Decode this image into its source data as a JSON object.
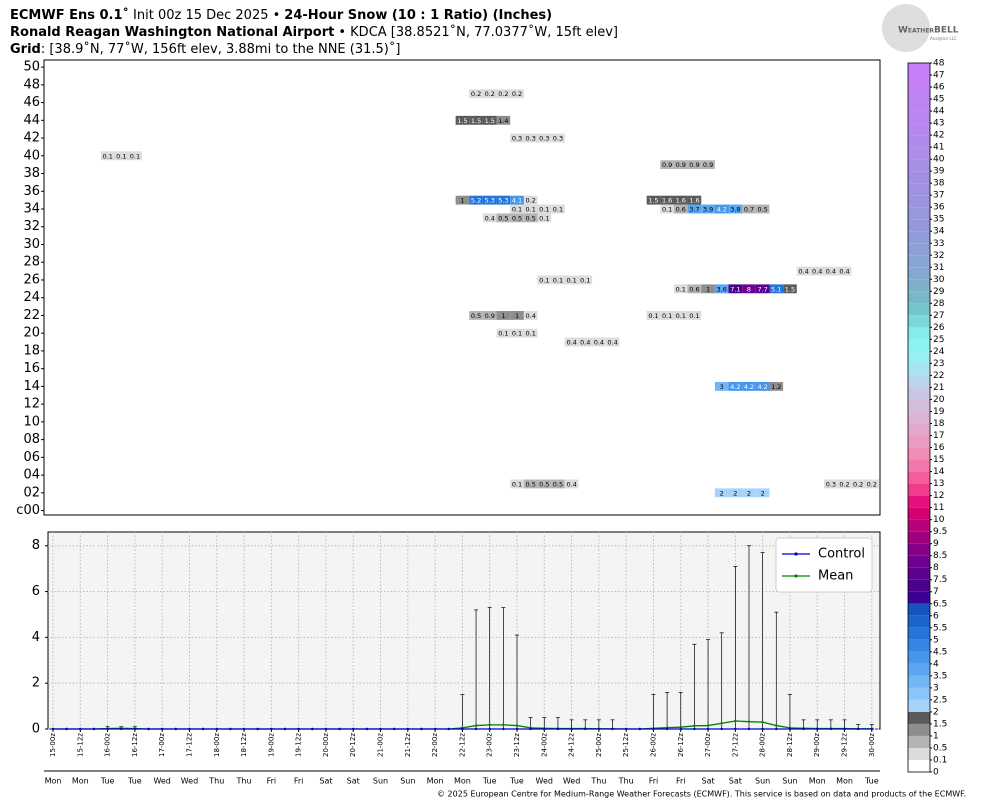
{
  "header": {
    "line1": [
      "ECMWF Ens 0.1˚",
      "Init 00z 15 Dec 2025 •",
      "24-Hour Snow (10 : 1 Ratio) (Inches)"
    ],
    "line2": [
      "Ronald Reagan Washington National Airport",
      "• KDCA [38.8521˚N, 77.0377˚W, 15ft elev]"
    ],
    "line3": [
      "Grid",
      ": [38.9˚N, 77˚W, 156ft elev, 3.88mi to the NNE (31.5)˚]"
    ]
  },
  "logo": {
    "name": "WeatherBELL",
    "sub": "Analytics LLC"
  },
  "footer": "© 2025 European Centre for Medium-Range Weather Forecasts (ECMWF). This service is based on data and products of the ECMWF.",
  "chart_data": [
    {
      "type": "heatmap",
      "xlim": [
        -4,
        363.6
      ],
      "ylim": [
        -0.5,
        50.8
      ],
      "yticks": [
        {
          "value": 0,
          "label": "c00"
        },
        {
          "value": 2,
          "label": "02"
        },
        {
          "value": 4,
          "label": "04"
        },
        {
          "value": 6,
          "label": "06"
        },
        {
          "value": 8,
          "label": "08"
        },
        10,
        12,
        14,
        16,
        18,
        20,
        22,
        24,
        26,
        28,
        30,
        32,
        34,
        36,
        38,
        40,
        42,
        44,
        46,
        48,
        50
      ],
      "cells": [
        {
          "member": 47,
          "hours": [
            186,
            192,
            198,
            204
          ],
          "values": [
            0.2,
            0.2,
            0.2,
            0.2
          ]
        },
        {
          "member": 44,
          "hours": [
            180,
            186,
            192,
            198
          ],
          "values": [
            1.5,
            1.5,
            1.5,
            1.4
          ]
        },
        {
          "member": 42,
          "hours": [
            204,
            210,
            216,
            222
          ],
          "values": [
            0.3,
            0.3,
            0.3,
            0.3
          ]
        },
        {
          "member": 40,
          "hours": [
            24,
            30,
            36
          ],
          "values": [
            0.1,
            0.1,
            0.1
          ]
        },
        {
          "member": 39,
          "hours": [
            270,
            276,
            282,
            288
          ],
          "values": [
            0.9,
            0.9,
            0.9,
            0.9
          ]
        },
        {
          "member": 35,
          "hours": [
            180,
            186,
            192,
            198,
            204,
            210
          ],
          "values": [
            1,
            5.2,
            5.3,
            5.3,
            4.1,
            0.2
          ]
        },
        {
          "member": 35,
          "hours": [
            264,
            270,
            276,
            282
          ],
          "values": [
            1.5,
            1.6,
            1.6,
            1.6
          ]
        },
        {
          "member": 34,
          "hours": [
            204,
            210,
            216,
            222
          ],
          "values": [
            0.1,
            0.1,
            0.1,
            0.1
          ]
        },
        {
          "member": 34,
          "hours": [
            270,
            276,
            282,
            288,
            294,
            300,
            306,
            312
          ],
          "values": [
            0.1,
            0.6,
            3.7,
            3.9,
            4.2,
            3.8,
            0.7,
            0.5
          ]
        },
        {
          "member": 33,
          "hours": [
            192,
            198,
            204,
            210,
            216
          ],
          "values": [
            0.4,
            0.5,
            0.5,
            0.5,
            0.1
          ]
        },
        {
          "member": 27,
          "hours": [
            330,
            336,
            342,
            348
          ],
          "values": [
            0.4,
            0.4,
            0.4,
            0.4
          ]
        },
        {
          "member": 26,
          "hours": [
            216,
            222,
            228,
            234
          ],
          "values": [
            0.1,
            0.1,
            0.1,
            0.1
          ]
        },
        {
          "member": 25,
          "hours": [
            276,
            282,
            288,
            294,
            300,
            306,
            312,
            318,
            324
          ],
          "values": [
            0.1,
            0.6,
            1,
            3.6,
            7.1,
            8,
            7.7,
            5.1,
            1.5
          ]
        },
        {
          "member": 22,
          "hours": [
            186,
            192,
            198,
            204,
            210
          ],
          "values": [
            0.5,
            0.9,
            1,
            1,
            0.4
          ]
        },
        {
          "member": 22,
          "hours": [
            264,
            270,
            276,
            282
          ],
          "values": [
            0.1,
            0.1,
            0.1,
            0.1
          ]
        },
        {
          "member": 20,
          "hours": [
            198,
            204,
            210
          ],
          "values": [
            0.1,
            0.1,
            0.1
          ]
        },
        {
          "member": 19,
          "hours": [
            228,
            234,
            240,
            246
          ],
          "values": [
            0.4,
            0.4,
            0.4,
            0.4
          ]
        },
        {
          "member": 14,
          "hours": [
            294,
            300,
            306,
            312,
            318
          ],
          "values": [
            3,
            4.2,
            4.2,
            4.2,
            1.2
          ]
        },
        {
          "member": 3,
          "hours": [
            204,
            210,
            216,
            222,
            228
          ],
          "values": [
            0.1,
            0.5,
            0.5,
            0.5,
            0.4
          ]
        },
        {
          "member": 3,
          "hours": [
            342,
            348,
            354,
            360
          ],
          "values": [
            0.3,
            0.2,
            0.2,
            0.2
          ]
        },
        {
          "member": 2,
          "hours": [
            294,
            300,
            306,
            312
          ],
          "values": [
            2,
            2,
            2,
            2
          ]
        }
      ],
      "colorbar": {
        "bounds": [
          0,
          0.1,
          0.5,
          1,
          1.5,
          2,
          2.5,
          3,
          3.5,
          4,
          4.5,
          5,
          5.5,
          6,
          6.5,
          7,
          7.5,
          8,
          8.5,
          9,
          9.5,
          10,
          11,
          12,
          13,
          14,
          15,
          16,
          17,
          18,
          19,
          20,
          21,
          22,
          23,
          24,
          25,
          26,
          27,
          28,
          29,
          30,
          31,
          32,
          33,
          34,
          35,
          36,
          37,
          38,
          39,
          40,
          41,
          42,
          43,
          44,
          45,
          46,
          47,
          48
        ],
        "colors": [
          "#ffffff",
          "#dcdcdc",
          "#b4b4b4",
          "#8e8e8e",
          "#5a5a5a",
          "#a6d3fa",
          "#8cc5f8",
          "#72b6f5",
          "#5aa6f1",
          "#4696ec",
          "#3586e4",
          "#2474d9",
          "#1a64cc",
          "#1454bc",
          "#3c0096",
          "#4b0090",
          "#5c0090",
          "#700092",
          "#860088",
          "#9e0080",
          "#b80078",
          "#d20070",
          "#e8107c",
          "#f03c8c",
          "#f45c9c",
          "#f478ac",
          "#f08cb8",
          "#ec9cc4",
          "#e4a8cc",
          "#dcb4d6",
          "#d4bcdc",
          "#c8c8e4",
          "#bad4ec",
          "#a8e4f0",
          "#98eef2",
          "#8ef2f2",
          "#84ecec",
          "#7cd8dc",
          "#74c4cc",
          "#78b8c8",
          "#7eb0cc",
          "#84a8d0",
          "#88a4d4",
          "#8ca0d6",
          "#909cd8",
          "#9498da",
          "#9896dc",
          "#9c94de",
          "#a092e0",
          "#a490e2",
          "#a88ee4",
          "#ac8ce6",
          "#b08aea",
          "#b488ec",
          "#b886ee",
          "#bc84f0",
          "#c082f2",
          "#c480f4",
          "#c87ef8"
        ]
      }
    },
    {
      "type": "line",
      "xlim": [
        -2.2,
        363.6
      ],
      "ylim": [
        0,
        8.6
      ],
      "yticks": [
        0,
        2,
        4,
        6,
        8
      ],
      "grid": true,
      "legend": "upper right",
      "x": [
        0,
        6,
        12,
        18,
        24,
        30,
        36,
        42,
        48,
        54,
        60,
        66,
        72,
        78,
        84,
        90,
        96,
        102,
        108,
        114,
        120,
        126,
        132,
        138,
        144,
        150,
        156,
        162,
        168,
        174,
        180,
        186,
        192,
        198,
        204,
        210,
        216,
        222,
        228,
        234,
        240,
        246,
        252,
        258,
        264,
        270,
        276,
        282,
        288,
        294,
        300,
        306,
        312,
        318,
        324,
        330,
        336,
        342,
        348,
        354,
        360
      ],
      "xticks": [
        {
          "value": 0,
          "label": "15-00z"
        },
        {
          "value": 12,
          "label": "15-12z"
        },
        {
          "value": 24,
          "label": "16-00z"
        },
        {
          "value": 36,
          "label": "16-12z"
        },
        {
          "value": 48,
          "label": "17-00z"
        },
        {
          "value": 60,
          "label": "17-12z"
        },
        {
          "value": 72,
          "label": "18-00z"
        },
        {
          "value": 84,
          "label": "18-12z"
        },
        {
          "value": 96,
          "label": "19-00z"
        },
        {
          "value": 108,
          "label": "19-12z"
        },
        {
          "value": 120,
          "label": "20-00z"
        },
        {
          "value": 132,
          "label": "20-12z"
        },
        {
          "value": 144,
          "label": "21-00z"
        },
        {
          "value": 156,
          "label": "21-12z"
        },
        {
          "value": 168,
          "label": "22-00z"
        },
        {
          "value": 180,
          "label": "22-12z"
        },
        {
          "value": 192,
          "label": "23-00z"
        },
        {
          "value": 204,
          "label": "23-12z"
        },
        {
          "value": 216,
          "label": "24-00z"
        },
        {
          "value": 228,
          "label": "24-12z"
        },
        {
          "value": 240,
          "label": "25-00z"
        },
        {
          "value": 252,
          "label": "25-12z"
        },
        {
          "value": 264,
          "label": "26-00z"
        },
        {
          "value": 276,
          "label": "26-12z"
        },
        {
          "value": 288,
          "label": "27-00z"
        },
        {
          "value": 300,
          "label": "27-12z"
        },
        {
          "value": 312,
          "label": "28-00z"
        },
        {
          "value": 324,
          "label": "28-12z"
        },
        {
          "value": 336,
          "label": "29-00z"
        },
        {
          "value": 348,
          "label": "29-12z"
        },
        {
          "value": 360,
          "label": "30-00z"
        }
      ],
      "weekdays": [
        "Mon",
        "Mon",
        "Tue",
        "Tue",
        "Wed",
        "Wed",
        "Thu",
        "Thu",
        "Fri",
        "Fri",
        "Sat",
        "Sat",
        "Sun",
        "Sun",
        "Mon",
        "Mon",
        "Tue",
        "Tue",
        "Wed",
        "Wed",
        "Thu",
        "Thu",
        "Fri",
        "Fri",
        "Sat",
        "Sat",
        "Sun",
        "Sun",
        "Mon",
        "Mon",
        "Tue"
      ],
      "series": [
        {
          "name": "Control",
          "color": "#0000cc",
          "values": [
            0,
            0,
            0,
            0,
            0,
            0,
            0,
            0,
            0,
            0,
            0,
            0,
            0,
            0,
            0,
            0,
            0,
            0,
            0,
            0,
            0,
            0,
            0,
            0,
            0,
            0,
            0,
            0,
            0,
            0,
            0,
            0,
            0,
            0,
            0,
            0,
            0,
            0,
            0,
            0,
            0,
            0,
            0,
            0,
            0,
            0,
            0,
            0,
            0,
            0,
            0,
            0,
            0,
            0,
            0,
            0,
            0,
            0,
            0,
            0,
            0
          ]
        },
        {
          "name": "Mean",
          "color": "#008000",
          "values": [
            0,
            0,
            0,
            0,
            0.02,
            0.03,
            0.02,
            0,
            0,
            0,
            0,
            0,
            0,
            0,
            0,
            0,
            0,
            0,
            0,
            0,
            0,
            0,
            0,
            0,
            0,
            0,
            0,
            0,
            0,
            0,
            0.05,
            0.15,
            0.18,
            0.18,
            0.15,
            0.05,
            0.03,
            0.02,
            0.02,
            0.02,
            0.01,
            0.01,
            0,
            0,
            0.03,
            0.06,
            0.08,
            0.14,
            0.15,
            0.25,
            0.35,
            0.32,
            0.3,
            0.15,
            0.05,
            0.03,
            0.02,
            0.02,
            0.02,
            0.01,
            0.01
          ]
        }
      ],
      "range_max": [
        0,
        0,
        0,
        0,
        0.1,
        0.1,
        0.1,
        0,
        0,
        0,
        0,
        0,
        0,
        0,
        0,
        0,
        0,
        0,
        0,
        0,
        0,
        0,
        0,
        0,
        0,
        0,
        0,
        0,
        0,
        0,
        1.5,
        5.2,
        5.3,
        5.3,
        4.1,
        0.5,
        0.5,
        0.5,
        0.4,
        0.4,
        0.4,
        0.4,
        0,
        0,
        1.5,
        1.6,
        1.6,
        3.7,
        3.9,
        4.2,
        7.1,
        8,
        7.7,
        5.1,
        1.5,
        0.4,
        0.4,
        0.4,
        0.4,
        0.2,
        0.2
      ],
      "range_color": "#000000"
    }
  ]
}
